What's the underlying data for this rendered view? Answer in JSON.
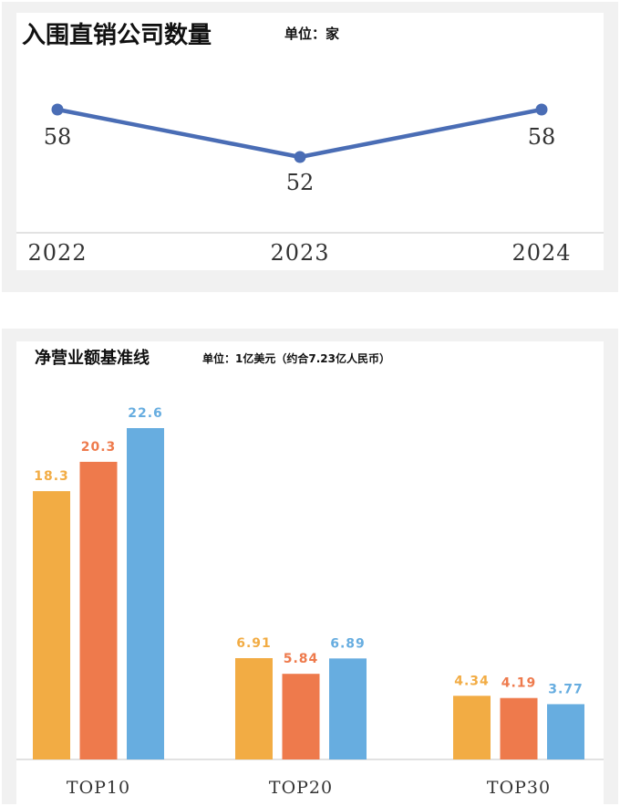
{
  "chart_data": [
    {
      "type": "line",
      "title": "入围直销公司数量",
      "unit": "单位：家",
      "categories": [
        "2022",
        "2023",
        "2024"
      ],
      "values": [
        58,
        52,
        58
      ],
      "color": "#4a6db5"
    },
    {
      "type": "bar",
      "title": "净营业额基准线",
      "unit": "单位：1亿美元（约合7.23亿人民币）",
      "categories": [
        "TOP10",
        "TOP20",
        "TOP30"
      ],
      "series": [
        {
          "values": [
            18.3,
            6.91,
            4.34
          ],
          "color": "#f2ac44"
        },
        {
          "values": [
            20.3,
            5.84,
            4.19
          ],
          "color": "#ee7a4c"
        },
        {
          "values": [
            22.6,
            6.89,
            3.77
          ],
          "color": "#67ade0"
        }
      ],
      "labels": [
        [
          "18.3",
          "6.91",
          "4.34"
        ],
        [
          "20.3",
          "5.84",
          "4.19"
        ],
        [
          "22.6",
          "6.89",
          "3.77"
        ]
      ]
    }
  ]
}
